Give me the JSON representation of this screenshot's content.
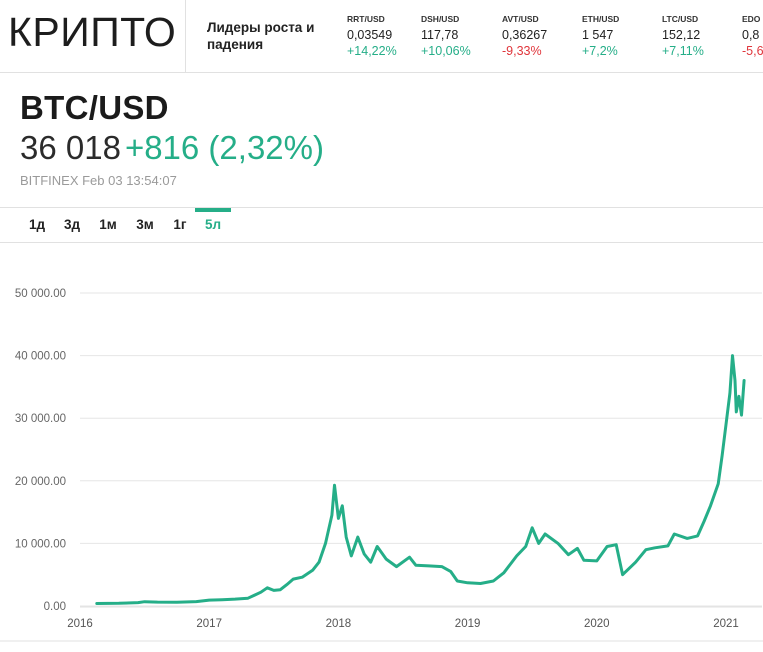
{
  "header": {
    "brand": "КРИПТО",
    "leaders_label": "Лидеры роста и падения",
    "tickers": [
      {
        "symbol": "RRT/USD",
        "price": "0,03549",
        "change": "+14,22%",
        "direction": "up"
      },
      {
        "symbol": "DSH/USD",
        "price": "117,78",
        "change": "+10,06%",
        "direction": "up"
      },
      {
        "symbol": "AVT/USD",
        "price": "0,36267",
        "change": "-9,33%",
        "direction": "down"
      },
      {
        "symbol": "ETH/USD",
        "price": "1 547",
        "change": "+7,2%",
        "direction": "up"
      },
      {
        "symbol": "LTC/USD",
        "price": "152,12",
        "change": "+7,11%",
        "direction": "up"
      },
      {
        "symbol": "EDO",
        "price": "0,8",
        "change": "-5,6",
        "direction": "down"
      }
    ]
  },
  "quote": {
    "pair": "BTC/USD",
    "price": "36 018",
    "change": "+816 (2,32%)",
    "source": "BITFINEX Feb 03 13:54:07"
  },
  "tabs": [
    {
      "label": "1д",
      "active": false
    },
    {
      "label": "3д",
      "active": false
    },
    {
      "label": "1м",
      "active": false
    },
    {
      "label": "3м",
      "active": false
    },
    {
      "label": "1г",
      "active": false
    },
    {
      "label": "5л",
      "active": true
    }
  ],
  "colors": {
    "accent": "#25ae88",
    "negative": "#e0353b",
    "line": "#25ae88",
    "grid": "#e6e6e6"
  },
  "chart_data": {
    "type": "line",
    "title": "",
    "xlabel": "",
    "ylabel": "",
    "x_ticks": [
      "2016",
      "2017",
      "2018",
      "2019",
      "2020",
      "2021"
    ],
    "y_ticks": [
      "0.00",
      "10 000.00",
      "20 000.00",
      "30 000.00",
      "40 000.00",
      "50 000.00"
    ],
    "ylim": [
      0,
      50000
    ],
    "xlim": [
      2016.0,
      2021.15
    ],
    "grid": true,
    "legend": "none",
    "series": [
      {
        "name": "",
        "points": [
          [
            2016.13,
            400
          ],
          [
            2016.3,
            430
          ],
          [
            2016.45,
            550
          ],
          [
            2016.5,
            680
          ],
          [
            2016.6,
            620
          ],
          [
            2016.75,
            610
          ],
          [
            2016.9,
            700
          ],
          [
            2017.0,
            950
          ],
          [
            2017.1,
            1000
          ],
          [
            2017.2,
            1100
          ],
          [
            2017.3,
            1250
          ],
          [
            2017.4,
            2200
          ],
          [
            2017.45,
            2900
          ],
          [
            2017.5,
            2500
          ],
          [
            2017.55,
            2600
          ],
          [
            2017.6,
            3400
          ],
          [
            2017.65,
            4300
          ],
          [
            2017.72,
            4600
          ],
          [
            2017.8,
            5700
          ],
          [
            2017.85,
            7000
          ],
          [
            2017.9,
            10000
          ],
          [
            2017.95,
            14500
          ],
          [
            2017.97,
            19300
          ],
          [
            2018.0,
            14000
          ],
          [
            2018.03,
            16000
          ],
          [
            2018.06,
            11000
          ],
          [
            2018.1,
            8000
          ],
          [
            2018.15,
            11000
          ],
          [
            2018.2,
            8300
          ],
          [
            2018.25,
            7000
          ],
          [
            2018.3,
            9500
          ],
          [
            2018.37,
            7500
          ],
          [
            2018.45,
            6300
          ],
          [
            2018.55,
            7800
          ],
          [
            2018.6,
            6500
          ],
          [
            2018.7,
            6400
          ],
          [
            2018.8,
            6300
          ],
          [
            2018.87,
            5500
          ],
          [
            2018.92,
            4000
          ],
          [
            2019.0,
            3700
          ],
          [
            2019.1,
            3600
          ],
          [
            2019.2,
            4000
          ],
          [
            2019.28,
            5300
          ],
          [
            2019.38,
            8000
          ],
          [
            2019.45,
            9500
          ],
          [
            2019.5,
            12500
          ],
          [
            2019.55,
            10000
          ],
          [
            2019.6,
            11500
          ],
          [
            2019.7,
            10000
          ],
          [
            2019.78,
            8200
          ],
          [
            2019.85,
            9200
          ],
          [
            2019.9,
            7300
          ],
          [
            2020.0,
            7200
          ],
          [
            2020.08,
            9500
          ],
          [
            2020.15,
            9800
          ],
          [
            2020.2,
            5000
          ],
          [
            2020.3,
            7000
          ],
          [
            2020.38,
            9000
          ],
          [
            2020.45,
            9300
          ],
          [
            2020.55,
            9600
          ],
          [
            2020.6,
            11500
          ],
          [
            2020.7,
            10800
          ],
          [
            2020.78,
            11200
          ],
          [
            2020.83,
            13500
          ],
          [
            2020.88,
            16000
          ],
          [
            2020.94,
            19500
          ],
          [
            2020.97,
            24000
          ],
          [
            2021.0,
            29000
          ],
          [
            2021.03,
            34000
          ],
          [
            2021.05,
            40000
          ],
          [
            2021.07,
            36000
          ],
          [
            2021.08,
            31000
          ],
          [
            2021.1,
            33500
          ],
          [
            2021.12,
            30500
          ],
          [
            2021.14,
            36018
          ]
        ]
      }
    ]
  }
}
